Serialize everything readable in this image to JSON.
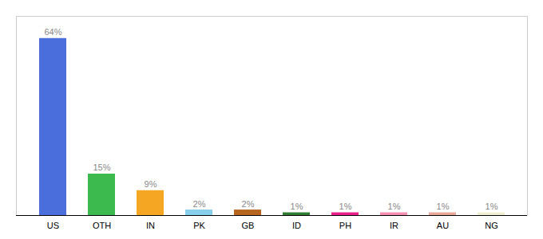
{
  "chart_data": {
    "type": "bar",
    "categories": [
      "US",
      "OTH",
      "IN",
      "PK",
      "GB",
      "ID",
      "PH",
      "IR",
      "AU",
      "NG"
    ],
    "values": [
      64,
      15,
      9,
      2,
      2,
      1,
      1,
      1,
      1,
      1
    ],
    "value_labels": [
      "64%",
      "15%",
      "9%",
      "2%",
      "2%",
      "1%",
      "1%",
      "1%",
      "1%",
      "1%"
    ],
    "colors": [
      "#4a6fdc",
      "#3dba4e",
      "#f5a623",
      "#87ceeb",
      "#b5651d",
      "#2e7d32",
      "#e91e8c",
      "#f48fb1",
      "#e8a898",
      "#f0f0d0"
    ],
    "ylim": [
      0,
      72
    ],
    "data_labels": true,
    "tick_labels": "x"
  }
}
